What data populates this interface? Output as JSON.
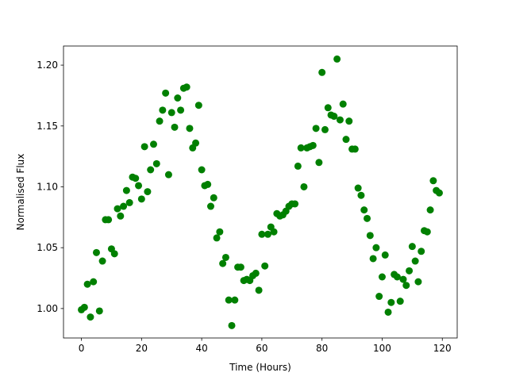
{
  "chart_data": {
    "type": "scatter",
    "x_label": "Time (Hours)",
    "y_label": "Normalised Flux",
    "color": "#008000",
    "grid": false,
    "xlim": [
      -5.95,
      124.95
    ],
    "ylim": [
      0.9758,
      1.2157
    ],
    "xticks": [
      0,
      20,
      40,
      60,
      80,
      100,
      120
    ],
    "yticks": [
      {
        "value": 1.0,
        "label": "1.00"
      },
      {
        "value": 1.05,
        "label": "1.05"
      },
      {
        "value": 1.1,
        "label": "1.10"
      },
      {
        "value": 1.15,
        "label": "1.15"
      },
      {
        "value": 1.2,
        "label": "1.20"
      }
    ],
    "x": [
      0,
      1,
      2,
      3,
      4,
      5,
      6,
      7,
      8,
      9,
      10,
      11,
      12,
      13,
      14,
      15,
      16,
      17,
      18,
      19,
      20,
      21,
      22,
      23,
      24,
      25,
      26,
      27,
      28,
      29,
      30,
      31,
      32,
      33,
      34,
      35,
      36,
      37,
      38,
      39,
      40,
      41,
      42,
      43,
      44,
      45,
      46,
      47,
      48,
      49,
      50,
      51,
      52,
      53,
      54,
      55,
      56,
      57,
      58,
      59,
      60,
      61,
      62,
      63,
      64,
      65,
      66,
      67,
      68,
      69,
      70,
      71,
      72,
      73,
      74,
      75,
      76,
      77,
      78,
      79,
      80,
      81,
      82,
      83,
      84,
      85,
      86,
      87,
      88,
      89,
      90,
      91,
      92,
      93,
      94,
      95,
      96,
      97,
      98,
      99,
      100,
      101,
      102,
      103,
      104,
      105,
      106,
      107,
      108,
      109,
      110,
      111,
      112,
      113,
      114,
      115,
      116,
      117,
      118,
      119
    ],
    "values": [
      0.999,
      1.001,
      1.02,
      0.993,
      1.022,
      1.046,
      0.998,
      1.039,
      1.073,
      1.073,
      1.049,
      1.045,
      1.082,
      1.076,
      1.084,
      1.097,
      1.087,
      1.108,
      1.107,
      1.101,
      1.09,
      1.133,
      1.096,
      1.114,
      1.135,
      1.119,
      1.154,
      1.163,
      1.177,
      1.11,
      1.161,
      1.149,
      1.173,
      1.163,
      1.181,
      1.182,
      1.148,
      1.132,
      1.136,
      1.167,
      1.114,
      1.101,
      1.102,
      1.084,
      1.091,
      1.058,
      1.063,
      1.037,
      1.042,
      1.007,
      0.986,
      1.007,
      1.034,
      1.034,
      1.023,
      1.024,
      1.023,
      1.027,
      1.029,
      1.015,
      1.061,
      1.035,
      1.061,
      1.067,
      1.063,
      1.078,
      1.076,
      1.077,
      1.08,
      1.084,
      1.086,
      1.086,
      1.117,
      1.132,
      1.1,
      1.132,
      1.133,
      1.134,
      1.148,
      1.12,
      1.194,
      1.147,
      1.165,
      1.159,
      1.158,
      1.205,
      1.155,
      1.168,
      1.139,
      1.154,
      1.131,
      1.131,
      1.099,
      1.093,
      1.081,
      1.074,
      1.06,
      1.041,
      1.05,
      1.01,
      1.026,
      1.044,
      0.997,
      1.005,
      1.028,
      1.026,
      1.006,
      1.024,
      1.019,
      1.031,
      1.051,
      1.039,
      1.022,
      1.047,
      1.064,
      1.063,
      1.081,
      1.105,
      1.097,
      1.095
    ]
  }
}
